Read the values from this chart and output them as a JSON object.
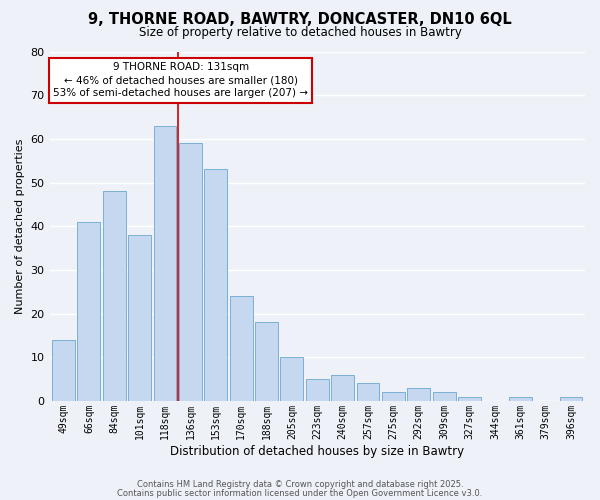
{
  "title": "9, THORNE ROAD, BAWTRY, DONCASTER, DN10 6QL",
  "subtitle": "Size of property relative to detached houses in Bawtry",
  "xlabel": "Distribution of detached houses by size in Bawtry",
  "ylabel": "Number of detached properties",
  "bar_labels": [
    "49sqm",
    "66sqm",
    "84sqm",
    "101sqm",
    "118sqm",
    "136sqm",
    "153sqm",
    "170sqm",
    "188sqm",
    "205sqm",
    "223sqm",
    "240sqm",
    "257sqm",
    "275sqm",
    "292sqm",
    "309sqm",
    "327sqm",
    "344sqm",
    "361sqm",
    "379sqm",
    "396sqm"
  ],
  "bar_values": [
    14,
    41,
    48,
    38,
    63,
    59,
    53,
    24,
    18,
    10,
    5,
    6,
    4,
    2,
    3,
    2,
    1,
    0,
    1,
    0,
    1
  ],
  "bar_color": "#c5d8f0",
  "bar_edge_color": "#7aafd4",
  "vline_x_index": 4.5,
  "vline_color": "#cc0000",
  "ylim": [
    0,
    80
  ],
  "yticks": [
    0,
    10,
    20,
    30,
    40,
    50,
    60,
    70,
    80
  ],
  "bg_color": "#eef2f8",
  "grid_color": "#ffffff",
  "annotation_title": "9 THORNE ROAD: 131sqm",
  "annotation_line1": "← 46% of detached houses are smaller (180)",
  "annotation_line2": "53% of semi-detached houses are larger (207) →",
  "annotation_box_facecolor": "#ffffff",
  "annotation_box_edgecolor": "#cc0000",
  "footer1": "Contains HM Land Registry data © Crown copyright and database right 2025.",
  "footer2": "Contains public sector information licensed under the Open Government Licence v3.0."
}
